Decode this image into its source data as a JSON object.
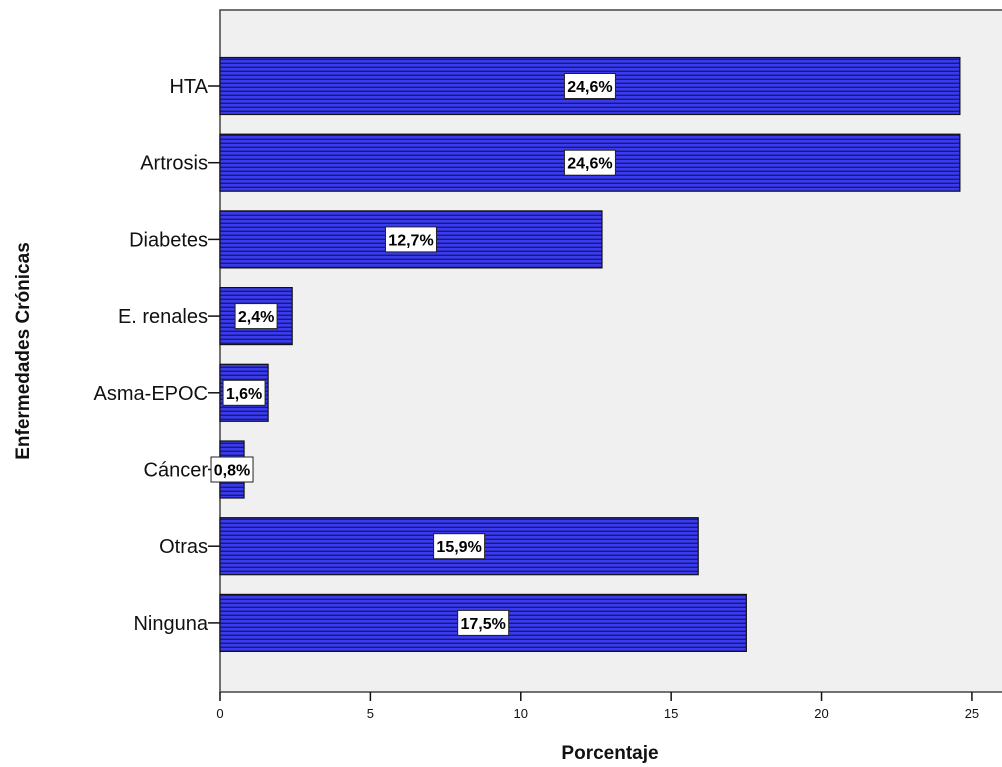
{
  "chart_data": {
    "type": "bar",
    "orientation": "horizontal",
    "categories": [
      "HTA",
      "Artrosis",
      "Diabetes",
      "E. renales",
      "Asma-EPOC",
      "Cáncer",
      "Otras",
      "Ninguna"
    ],
    "values": [
      24.6,
      24.6,
      12.7,
      2.4,
      1.6,
      0.8,
      15.9,
      17.5
    ],
    "data_labels": [
      "24,6%",
      "24,6%",
      "12,7%",
      "2,4%",
      "1,6%",
      "0,8%",
      "15,9%",
      "17,5%"
    ],
    "xlabel": "Porcentaje",
    "ylabel": "Enfermedades Crónicas",
    "xlim": [
      0,
      26
    ],
    "xticks": [
      0,
      5,
      10,
      15,
      20,
      25
    ],
    "bar_color": "#3a3af0",
    "stripe_color": "#1a1a6e",
    "plot_background": "#f0f0f0",
    "grid": false
  }
}
